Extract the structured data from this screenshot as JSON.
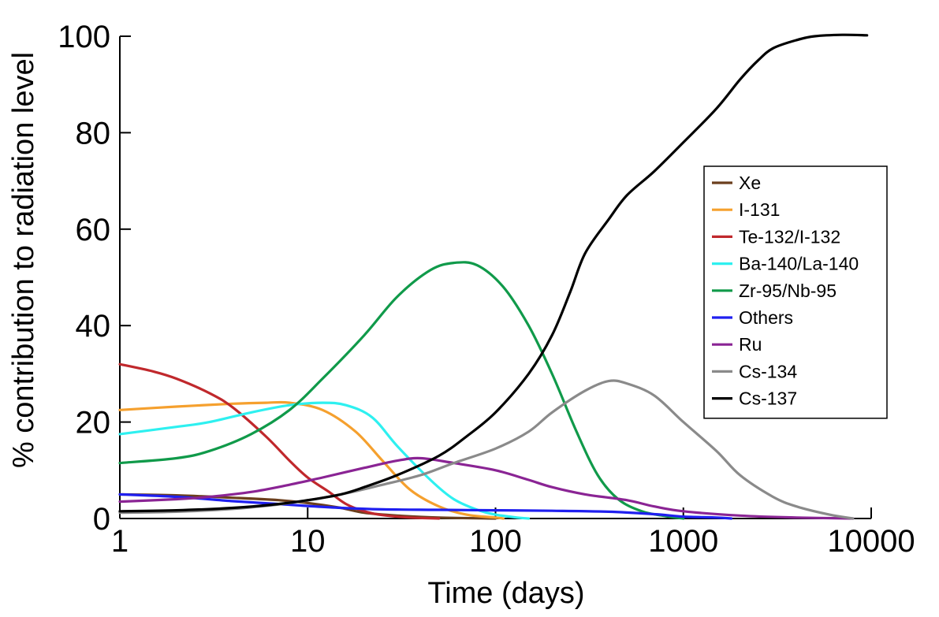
{
  "chart_data": {
    "type": "line",
    "title": "",
    "xlabel": "Time (days)",
    "ylabel": "% contribution to radiation level",
    "x_scale": "log",
    "xlim": [
      1,
      10000
    ],
    "ylim": [
      0,
      100
    ],
    "x_ticks": [
      1,
      10,
      100,
      1000,
      10000
    ],
    "x_tick_labels": [
      "1",
      "10",
      "100",
      "1000",
      "10000"
    ],
    "y_ticks": [
      0,
      20,
      40,
      60,
      80,
      100
    ],
    "y_tick_labels": [
      "0",
      "20",
      "40",
      "60",
      "80",
      "100"
    ],
    "grid": false,
    "legend_position": "right",
    "series": [
      {
        "name": "Xe",
        "color": "#6b3f1d",
        "points": [
          [
            1,
            5
          ],
          [
            2,
            4.8
          ],
          [
            4,
            4.3
          ],
          [
            7,
            3.8
          ],
          [
            10,
            3.2
          ],
          [
            15,
            2.2
          ],
          [
            20,
            1.2
          ],
          [
            30,
            0.6
          ],
          [
            50,
            0.2
          ],
          [
            100,
            0
          ]
        ]
      },
      {
        "name": "I-131",
        "color": "#f5a02e",
        "points": [
          [
            1,
            22.5
          ],
          [
            2,
            23.2
          ],
          [
            4,
            23.8
          ],
          [
            6,
            24
          ],
          [
            8,
            24
          ],
          [
            12,
            22.5
          ],
          [
            18,
            18
          ],
          [
            25,
            12
          ],
          [
            35,
            6
          ],
          [
            50,
            2.5
          ],
          [
            70,
            0.8
          ],
          [
            100,
            0.2
          ],
          [
            110,
            0
          ]
        ]
      },
      {
        "name": "Te-132/I-132",
        "color": "#c0282c",
        "points": [
          [
            1,
            32
          ],
          [
            1.5,
            30.5
          ],
          [
            2,
            29
          ],
          [
            3,
            26
          ],
          [
            4,
            23
          ],
          [
            6,
            17
          ],
          [
            8,
            12
          ],
          [
            10,
            8.5
          ],
          [
            13,
            5.5
          ],
          [
            16,
            3
          ],
          [
            20,
            1.5
          ],
          [
            25,
            0.7
          ],
          [
            35,
            0.2
          ],
          [
            50,
            0
          ]
        ]
      },
      {
        "name": "Ba-140/La-140",
        "color": "#2ef0f0",
        "points": [
          [
            1,
            17.5
          ],
          [
            2,
            19
          ],
          [
            3,
            20
          ],
          [
            5,
            22
          ],
          [
            8,
            23.5
          ],
          [
            12,
            24
          ],
          [
            16,
            23.5
          ],
          [
            22,
            21
          ],
          [
            30,
            15
          ],
          [
            45,
            8
          ],
          [
            60,
            4
          ],
          [
            80,
            1.8
          ],
          [
            100,
            0.8
          ],
          [
            130,
            0.2
          ],
          [
            150,
            0
          ]
        ]
      },
      {
        "name": "Zr-95/Nb-95",
        "color": "#109a4a",
        "points": [
          [
            1,
            11.5
          ],
          [
            2,
            12.5
          ],
          [
            3,
            14
          ],
          [
            5,
            17.5
          ],
          [
            8,
            22.5
          ],
          [
            12,
            29
          ],
          [
            20,
            38
          ],
          [
            30,
            46
          ],
          [
            45,
            51.5
          ],
          [
            60,
            53
          ],
          [
            80,
            52.5
          ],
          [
            110,
            48
          ],
          [
            150,
            40
          ],
          [
            200,
            30
          ],
          [
            270,
            18
          ],
          [
            350,
            9
          ],
          [
            450,
            4
          ],
          [
            600,
            1.5
          ],
          [
            800,
            0.5
          ],
          [
            1000,
            0
          ]
        ]
      },
      {
        "name": "Others",
        "color": "#1f1ff0",
        "points": [
          [
            1,
            5
          ],
          [
            2,
            4.5
          ],
          [
            4,
            3.6
          ],
          [
            7,
            3
          ],
          [
            10,
            2.6
          ],
          [
            15,
            2.2
          ],
          [
            25,
            1.9
          ],
          [
            50,
            1.8
          ],
          [
            100,
            1.7
          ],
          [
            200,
            1.6
          ],
          [
            400,
            1.4
          ],
          [
            700,
            0.9
          ],
          [
            1000,
            0.4
          ],
          [
            1500,
            0.2
          ],
          [
            1800,
            0
          ]
        ]
      },
      {
        "name": "Ru",
        "color": "#8a2494",
        "points": [
          [
            1,
            3.5
          ],
          [
            2,
            4
          ],
          [
            3,
            4.5
          ],
          [
            5,
            5.5
          ],
          [
            8,
            7
          ],
          [
            12,
            8.5
          ],
          [
            20,
            10.5
          ],
          [
            30,
            12
          ],
          [
            40,
            12.5
          ],
          [
            60,
            11.5
          ],
          [
            100,
            10
          ],
          [
            150,
            8
          ],
          [
            200,
            6.5
          ],
          [
            300,
            5
          ],
          [
            500,
            3.8
          ],
          [
            700,
            2.5
          ],
          [
            1000,
            1.5
          ],
          [
            2000,
            0.6
          ],
          [
            4000,
            0.2
          ],
          [
            8000,
            0
          ]
        ]
      },
      {
        "name": "Cs-134",
        "color": "#8a8a8a",
        "points": [
          [
            1,
            1.2
          ],
          [
            2,
            1.4
          ],
          [
            4,
            2
          ],
          [
            8,
            3.2
          ],
          [
            15,
            5
          ],
          [
            25,
            7
          ],
          [
            40,
            9
          ],
          [
            60,
            11.5
          ],
          [
            100,
            14.5
          ],
          [
            150,
            18
          ],
          [
            200,
            22
          ],
          [
            300,
            26.5
          ],
          [
            400,
            28.5
          ],
          [
            500,
            28
          ],
          [
            700,
            25.5
          ],
          [
            1000,
            20
          ],
          [
            1500,
            14
          ],
          [
            2000,
            9
          ],
          [
            3000,
            4.5
          ],
          [
            4000,
            2.5
          ],
          [
            6000,
            0.8
          ],
          [
            8000,
            0
          ]
        ]
      },
      {
        "name": "Cs-137",
        "color": "#000000",
        "points": [
          [
            1,
            1.5
          ],
          [
            2,
            1.7
          ],
          [
            4,
            2.2
          ],
          [
            7,
            3
          ],
          [
            10,
            3.8
          ],
          [
            15,
            5
          ],
          [
            20,
            6.5
          ],
          [
            30,
            9
          ],
          [
            50,
            13
          ],
          [
            70,
            17
          ],
          [
            100,
            22
          ],
          [
            150,
            30
          ],
          [
            200,
            38
          ],
          [
            250,
            47
          ],
          [
            300,
            55
          ],
          [
            400,
            62
          ],
          [
            500,
            67
          ],
          [
            700,
            72
          ],
          [
            1000,
            78
          ],
          [
            1500,
            85
          ],
          [
            2000,
            91
          ],
          [
            2500,
            95
          ],
          [
            3000,
            97.5
          ],
          [
            4000,
            99.2
          ],
          [
            5000,
            100
          ],
          [
            7000,
            100.3
          ],
          [
            9500,
            100.2
          ]
        ]
      }
    ]
  }
}
